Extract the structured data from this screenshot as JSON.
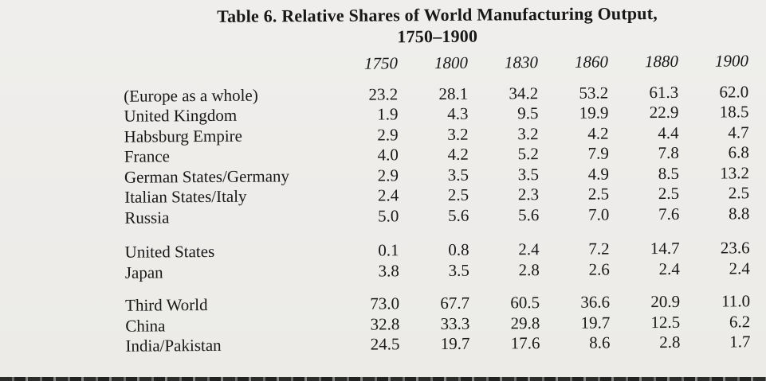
{
  "title": {
    "line1": "Table 6. Relative Shares of World Manufacturing Output,",
    "line2": "1750–1900"
  },
  "colors": {
    "paper": "#edece9",
    "ink": "#181818"
  },
  "table": {
    "columns": [
      "1750",
      "1800",
      "1830",
      "1860",
      "1880",
      "1900"
    ],
    "groups": [
      {
        "rows": [
          {
            "label": "(Europe as a whole)",
            "values": [
              "23.2",
              "28.1",
              "34.2",
              "53.2",
              "61.3",
              "62.0"
            ]
          },
          {
            "label": "United Kingdom",
            "values": [
              "1.9",
              "4.3",
              "9.5",
              "19.9",
              "22.9",
              "18.5"
            ]
          },
          {
            "label": "Habsburg Empire",
            "values": [
              "2.9",
              "3.2",
              "3.2",
              "4.2",
              "4.4",
              "4.7"
            ]
          },
          {
            "label": "France",
            "values": [
              "4.0",
              "4.2",
              "5.2",
              "7.9",
              "7.8",
              "6.8"
            ]
          },
          {
            "label": "German States/Germany",
            "values": [
              "2.9",
              "3.5",
              "3.5",
              "4.9",
              "8.5",
              "13.2"
            ]
          },
          {
            "label": "Italian States/Italy",
            "values": [
              "2.4",
              "2.5",
              "2.3",
              "2.5",
              "2.5",
              "2.5"
            ]
          },
          {
            "label": "Russia",
            "values": [
              "5.0",
              "5.6",
              "5.6",
              "7.0",
              "7.6",
              "8.8"
            ]
          }
        ]
      },
      {
        "rows": [
          {
            "label": "United States",
            "values": [
              "0.1",
              "0.8",
              "2.4",
              "7.2",
              "14.7",
              "23.6"
            ]
          },
          {
            "label": "Japan",
            "values": [
              "3.8",
              "3.5",
              "2.8",
              "2.6",
              "2.4",
              "2.4"
            ]
          }
        ]
      },
      {
        "rows": [
          {
            "label": "Third World",
            "values": [
              "73.0",
              "67.7",
              "60.5",
              "36.6",
              "20.9",
              "11.0"
            ]
          },
          {
            "label": "China",
            "values": [
              "32.8",
              "33.3",
              "29.8",
              "19.7",
              "12.5",
              "6.2"
            ]
          },
          {
            "label": "India/Pakistan",
            "values": [
              "24.5",
              "19.7",
              "17.6",
              "8.6",
              "2.8",
              "1.7"
            ]
          }
        ]
      }
    ]
  }
}
